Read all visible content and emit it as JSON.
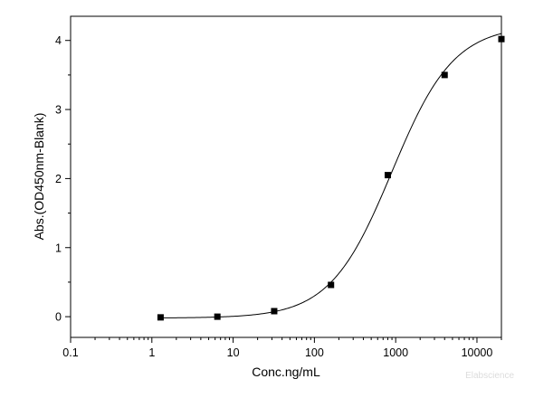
{
  "chart_data": {
    "type": "scatter",
    "xlabel": "Conc.ng/mL",
    "ylabel": "Abs.(OD450nm-Blank)",
    "x_scale": "log",
    "xlim": [
      0.1,
      20000
    ],
    "ylim": [
      -0.3,
      4.35
    ],
    "x_ticks": [
      0.1,
      1,
      10,
      100,
      1000,
      10000
    ],
    "x_tick_labels": [
      "0.1",
      "1",
      "10",
      "100",
      "1000",
      "10000"
    ],
    "y_ticks": [
      0,
      1,
      2,
      3,
      4
    ],
    "y_tick_labels": [
      "0",
      "1",
      "2",
      "3",
      "4"
    ],
    "grid": false,
    "series": [
      {
        "marker": "square",
        "color": "#000000",
        "x": [
          1.28,
          6.4,
          32,
          160,
          800,
          4000,
          20000
        ],
        "y": [
          -0.01,
          0.0,
          0.08,
          0.46,
          2.05,
          3.5,
          4.02
        ]
      }
    ],
    "fit_curve": {
      "color": "#000000",
      "model": "4PL",
      "bottom": -0.02,
      "top": 4.22,
      "ec50": 900,
      "hill": 1.14
    },
    "watermark": "Elabscience"
  }
}
